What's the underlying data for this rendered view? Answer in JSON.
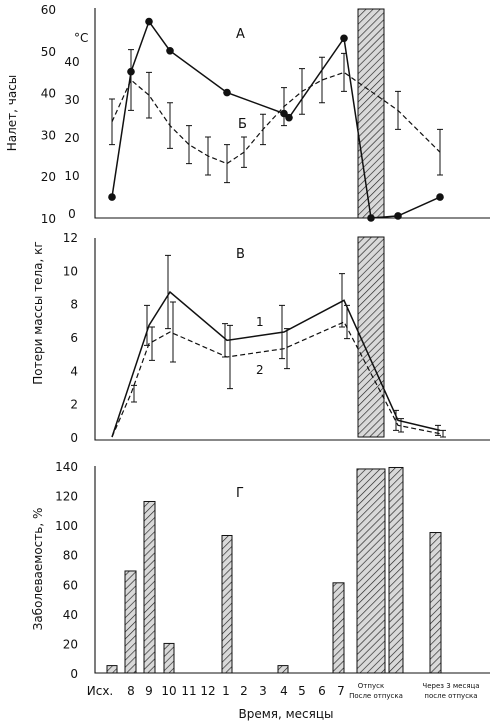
{
  "chart_data": [
    {
      "panel": "A/B",
      "type": "line",
      "ylabel": "Налет, часы",
      "y2label": "°С",
      "ylim": [
        10,
        60
      ],
      "y2lim": [
        0,
        40
      ],
      "yticks": [
        "60",
        "50",
        "40",
        "30",
        "20",
        "10"
      ],
      "y2ticks": [
        "40",
        "30",
        "20",
        "10",
        "0"
      ],
      "categories": [
        "Исх.",
        "8",
        "9",
        "10",
        "11",
        "12",
        "1",
        "2",
        "3",
        "4",
        "5",
        "6",
        "7",
        "Отпуск",
        "После отпуска",
        "Через 3 месяца после отпуска"
      ],
      "series": [
        {
          "name": "А",
          "style": "solid-markers",
          "x": [
            "Исх.",
            "8",
            "9",
            "10",
            "1",
            "4",
            "4.2",
            "7",
            "Отпуск",
            "После отпуска",
            "Через 3 месяца после отпуска"
          ],
          "values": [
            15,
            45,
            57,
            50,
            40,
            35,
            34,
            53,
            10,
            10.5,
            15
          ]
        },
        {
          "name": "Б",
          "style": "dashed-errorbars",
          "x": [
            "Исх.",
            "8",
            "9",
            "10",
            "11",
            "12",
            "1",
            "2",
            "3",
            "4",
            "5",
            "6",
            "7",
            "После отпуска",
            "Через 3 месяца после отпуска"
          ],
          "values": [
            24,
            35,
            31,
            23,
            18,
            15,
            13,
            16,
            22,
            28,
            32,
            35,
            37,
            27,
            16
          ],
          "err": [
            6,
            8,
            6,
            6,
            5,
            5,
            5,
            4,
            4,
            5,
            6,
            6,
            5,
            5,
            6
          ]
        }
      ],
      "hatched_bar": {
        "x": "Отпуск",
        "from": 10,
        "to": 60
      }
    },
    {
      "panel": "В",
      "type": "line",
      "ylabel": "Потери массы тела, кг",
      "ylim": [
        0,
        12
      ],
      "yticks": [
        "12",
        "10",
        "8",
        "6",
        "4",
        "2",
        "0"
      ],
      "series": [
        {
          "name": "1",
          "style": "solid",
          "x": [
            "Исх.",
            "9",
            "10",
            "1",
            "4",
            "7",
            "После отпуска",
            "Через 3 месяца после отпуска"
          ],
          "values": [
            0,
            6.7,
            8.7,
            5.8,
            6.3,
            8.2,
            1.0,
            0.4
          ],
          "err": [
            0,
            1.2,
            2.2,
            1.0,
            1.6,
            1.6,
            0.6,
            0.3
          ]
        },
        {
          "name": "2",
          "style": "dashed",
          "x": [
            "Исх.",
            "8",
            "9",
            "10",
            "1",
            "4",
            "7",
            "После отпуска",
            "Через 3 месяца после отпуска"
          ],
          "values": [
            0,
            2.6,
            5.6,
            6.3,
            4.8,
            5.3,
            6.9,
            0.7,
            0.2
          ],
          "err": [
            0,
            0.5,
            1.0,
            1.8,
            1.9,
            1.2,
            1.0,
            0.4,
            0.2
          ]
        }
      ],
      "hatched_bar": {
        "x": "Отпуск",
        "from": 0,
        "to": 12
      }
    },
    {
      "panel": "Г",
      "type": "bar",
      "ylabel": "Заболеваемость, %",
      "ylim": [
        0,
        140
      ],
      "yticks": [
        "140",
        "120",
        "100",
        "80",
        "60",
        "40",
        "20",
        "0"
      ],
      "xlabel": "Время, месяцы",
      "xticks": [
        "Исх.",
        "8",
        "9",
        "10",
        "11",
        "12",
        "1",
        "2",
        "3",
        "4",
        "5",
        "6",
        "7"
      ],
      "xtick_otpusk": "Отпуск",
      "xtick_posle": "После отпуска",
      "xtick_cherez_line1": "Через 3 месяца",
      "xtick_cherez_line2": "после отпуска",
      "categories": [
        "Исх.",
        "8",
        "9",
        "10",
        "1",
        "4",
        "7",
        "Отпуск",
        "После отпуска",
        "Через 3 месяца после отпуска"
      ],
      "values": [
        5,
        69,
        116,
        20,
        93,
        5,
        61,
        138,
        139,
        95
      ]
    }
  ],
  "panel_labels": {
    "a": "А",
    "b": "Б",
    "v": "В",
    "g": "Г",
    "one": "1",
    "two": "2"
  },
  "colors": {
    "ink": "#111111",
    "hatch_bg": "#d9d9d9"
  }
}
